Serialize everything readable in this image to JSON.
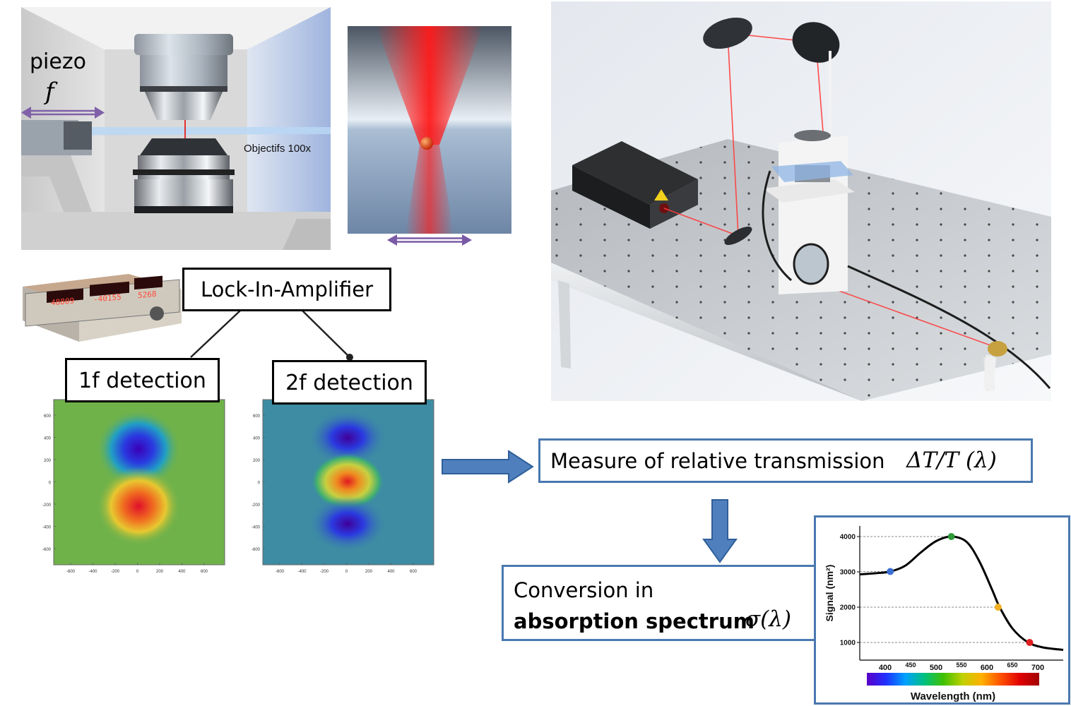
{
  "piezo": {
    "label": "piezo",
    "symbol": "f",
    "objective_label": "Objectifs 100x"
  },
  "lock_in": {
    "label": "Lock-In-Amplifier",
    "display": [
      "48809",
      "-40155",
      "5268"
    ]
  },
  "detection_1f": {
    "label": "1f detection"
  },
  "detection_2f": {
    "label": "2f detection"
  },
  "map_axis": {
    "ticks": [
      "600",
      "400",
      "200",
      "0",
      "-200",
      "-400",
      "-600"
    ]
  },
  "measure": {
    "text": "Measure of relative transmission",
    "formula": "ΔT/T (λ)"
  },
  "conversion": {
    "line1": "Conversion in",
    "line2_bold": "absorption spectrum",
    "formula": "σ(λ)"
  },
  "chart_data": {
    "type": "line",
    "xlabel": "Wavelength (nm)",
    "ylabel": "Signal (nm²)",
    "xlim": [
      350,
      750
    ],
    "ylim": [
      500,
      4300
    ],
    "xticks": [
      400,
      450,
      500,
      550,
      600,
      650,
      700
    ],
    "yticks": [
      1000,
      2000,
      3000,
      4000
    ],
    "curve": [
      [
        350,
        2930
      ],
      [
        380,
        2960
      ],
      [
        410,
        3010
      ],
      [
        440,
        3180
      ],
      [
        470,
        3550
      ],
      [
        500,
        3870
      ],
      [
        530,
        4000
      ],
      [
        560,
        3850
      ],
      [
        585,
        3300
      ],
      [
        610,
        2500
      ],
      [
        625,
        2000
      ],
      [
        650,
        1400
      ],
      [
        680,
        1010
      ],
      [
        710,
        860
      ],
      [
        750,
        790
      ]
    ],
    "markers": [
      {
        "x": 410,
        "y": 3010,
        "color": "#3b6fd4"
      },
      {
        "x": 530,
        "y": 4000,
        "color": "#2e9a3a"
      },
      {
        "x": 622,
        "y": 2000,
        "color": "#f0b020"
      },
      {
        "x": 684,
        "y": 1000,
        "color": "#e02020"
      }
    ],
    "gradient": [
      "#5a00c8",
      "#2030ff",
      "#00a0ff",
      "#00c080",
      "#40c000",
      "#c0d000",
      "#ffb000",
      "#ff5000",
      "#e00000",
      "#a00000"
    ]
  }
}
